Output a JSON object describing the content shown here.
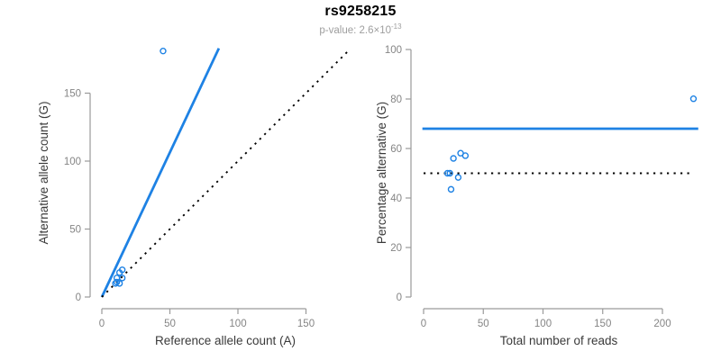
{
  "header": {
    "title": "rs9258215",
    "pvalue_text": "p-value: 2.6×10",
    "pvalue_exponent": "-13"
  },
  "colors": {
    "accent_blue": "#1e82e4",
    "line_black": "#000000",
    "axis_gray": "#9a9a9a",
    "tick_label_gray": "#858585",
    "axis_title_gray": "#3a3a3a",
    "subtitle_gray": "#9e9e9e"
  },
  "chart_data": [
    {
      "id": "left",
      "type": "scatter",
      "xlabel": "Reference allele count (A)",
      "ylabel": "Alternative allele count (G)",
      "xlim": [
        0,
        185
      ],
      "ylim": [
        0,
        185
      ],
      "xticks": [
        0,
        50,
        100,
        150
      ],
      "yticks": [
        0,
        50,
        100,
        150
      ],
      "grid": false,
      "legend": "none",
      "points": [
        {
          "x": 10,
          "y": 10
        },
        {
          "x": 11,
          "y": 11
        },
        {
          "x": 11,
          "y": 14
        },
        {
          "x": 13,
          "y": 10
        },
        {
          "x": 13,
          "y": 18
        },
        {
          "x": 15,
          "y": 14
        },
        {
          "x": 15,
          "y": 20
        },
        {
          "x": 45,
          "y": 181
        }
      ],
      "lines": [
        {
          "name": "allelic-ratio-fit-line",
          "style": "solid",
          "color_key": "accent_blue",
          "from": [
            0,
            0
          ],
          "to": [
            86,
            183
          ]
        },
        {
          "name": "identity-line",
          "style": "dotted",
          "color_key": "line_black",
          "from": [
            0,
            0
          ],
          "to": [
            181,
            181
          ]
        }
      ]
    },
    {
      "id": "right",
      "type": "scatter",
      "xlabel": "Total number of reads",
      "ylabel": "Percentage alternative (G)",
      "xlim": [
        0,
        230
      ],
      "ylim": [
        0,
        100
      ],
      "xticks": [
        0,
        50,
        100,
        150,
        200
      ],
      "yticks": [
        0,
        20,
        40,
        60,
        80,
        100
      ],
      "grid": false,
      "legend": "none",
      "points": [
        {
          "x": 20,
          "y": 50
        },
        {
          "x": 22,
          "y": 50
        },
        {
          "x": 25,
          "y": 56
        },
        {
          "x": 23,
          "y": 43.5
        },
        {
          "x": 31,
          "y": 58.1
        },
        {
          "x": 29,
          "y": 48.3
        },
        {
          "x": 35,
          "y": 57.1
        },
        {
          "x": 226,
          "y": 80.1
        }
      ],
      "lines": [
        {
          "name": "mean-percentage-line",
          "style": "solid",
          "color_key": "accent_blue",
          "from": [
            -1,
            68
          ],
          "to": [
            230,
            68
          ]
        },
        {
          "name": "expected-50-percent-line",
          "style": "dotted",
          "color_key": "line_black",
          "from": [
            0,
            50
          ],
          "to": [
            224,
            50
          ]
        }
      ]
    }
  ]
}
